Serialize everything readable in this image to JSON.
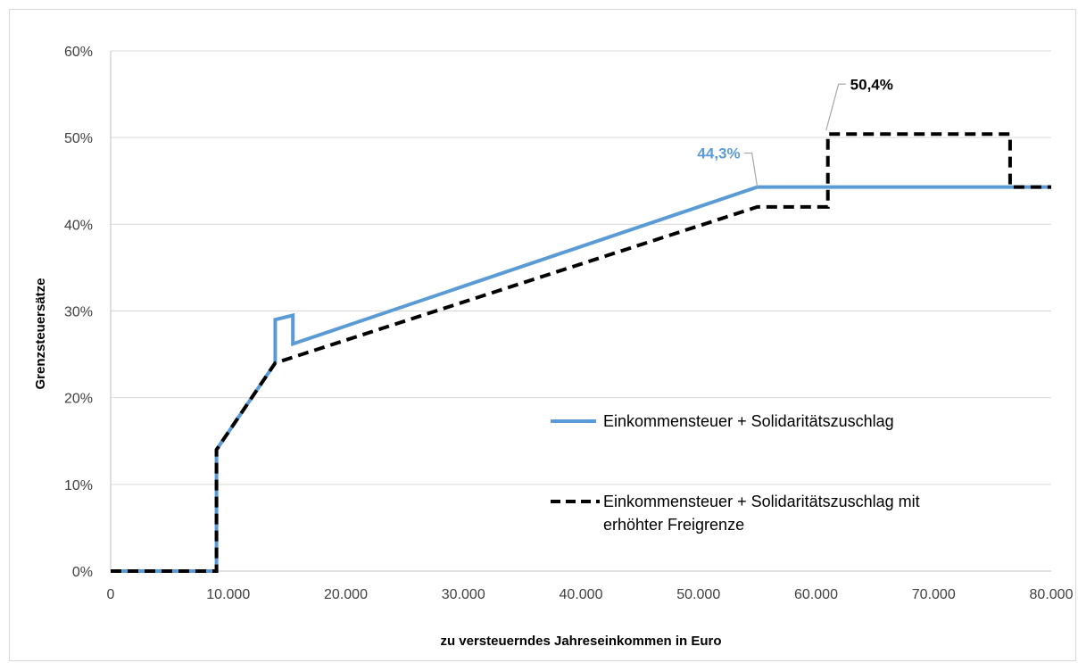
{
  "chart_data": {
    "type": "line",
    "title": "",
    "xlabel": "zu versteuerndes Jahreseinkommen in Euro",
    "ylabel": "Grenzsteuersätze",
    "xlim": [
      0,
      80000
    ],
    "ylim": [
      0,
      60
    ],
    "x_ticks": [
      {
        "value": 0,
        "label": "0"
      },
      {
        "value": 10000,
        "label": "10.000"
      },
      {
        "value": 20000,
        "label": "20.000"
      },
      {
        "value": 30000,
        "label": "30.000"
      },
      {
        "value": 40000,
        "label": "40.000"
      },
      {
        "value": 50000,
        "label": "50.000"
      },
      {
        "value": 60000,
        "label": "60.000"
      },
      {
        "value": 70000,
        "label": "70.000"
      },
      {
        "value": 80000,
        "label": "80.000"
      }
    ],
    "y_ticks": [
      {
        "value": 0,
        "label": "0%"
      },
      {
        "value": 10,
        "label": "10%"
      },
      {
        "value": 20,
        "label": "20%"
      },
      {
        "value": 30,
        "label": "30%"
      },
      {
        "value": 40,
        "label": "40%"
      },
      {
        "value": 50,
        "label": "50%"
      },
      {
        "value": 60,
        "label": "60%"
      }
    ],
    "grid": "horizontal",
    "legend_position": "center-right",
    "series": [
      {
        "name": "Einkommensteuer + Solidaritätszuschlag",
        "color": "#5b9bd5",
        "style": "solid",
        "x": [
          0,
          9000,
          9000,
          14000,
          14000,
          15500,
          15500,
          55000,
          80000
        ],
        "y": [
          0,
          0,
          14,
          24,
          29,
          29.5,
          26.2,
          44.3,
          44.3
        ]
      },
      {
        "name": "Einkommensteuer + Solidaritätszuschlag mit erhöhter Freigrenze",
        "legend_lines": [
          "Einkommensteuer + Solidaritätszuschlag mit",
          "erhöhter Freigrenze"
        ],
        "color": "#000000",
        "style": "dashed",
        "x": [
          0,
          9000,
          9000,
          14000,
          55000,
          61000,
          61000,
          76500,
          76500,
          80000
        ],
        "y": [
          0,
          0,
          14,
          24,
          42,
          42,
          50.4,
          50.4,
          44.3,
          44.3
        ]
      }
    ],
    "annotations": [
      {
        "text": "44,3%",
        "x": 55000,
        "y": 44.3,
        "color": "#5b9bd5"
      },
      {
        "text": "50,4%",
        "x": 61000,
        "y": 50.4,
        "color": "#000000"
      }
    ]
  }
}
